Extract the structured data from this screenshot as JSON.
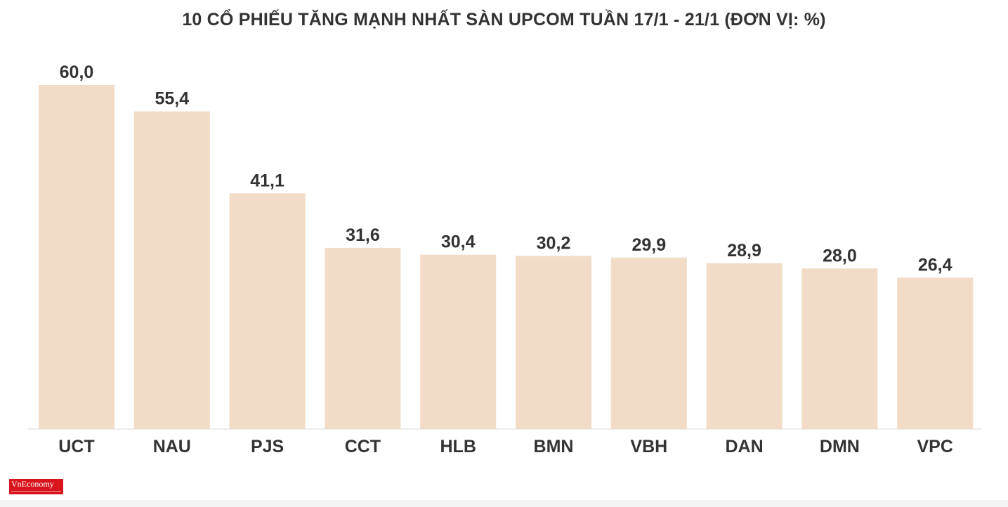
{
  "chart_data": {
    "type": "bar",
    "title": "10 CỔ PHIẾU TĂNG MẠNH NHẤT SÀN UPCOM TUẦN 17/1 - 21/1 (ĐƠN VỊ: %)",
    "categories": [
      "UCT",
      "NAU",
      "PJS",
      "CCT",
      "HLB",
      "BMN",
      "VBH",
      "DAN",
      "DMN",
      "VPC"
    ],
    "values": [
      60.0,
      55.4,
      41.1,
      31.6,
      30.4,
      30.2,
      29.9,
      28.9,
      28.0,
      26.4
    ],
    "value_labels": [
      "60,0",
      "55,4",
      "41,1",
      "31,6",
      "30,4",
      "30,2",
      "29,9",
      "28,9",
      "28,0",
      "26,4"
    ],
    "xlabel": "",
    "ylabel": "",
    "ylim": [
      0,
      60
    ],
    "grid": false,
    "bar_color": "#f2dcc8",
    "text_color": "#333333",
    "axis_color": "#d9d9d9"
  },
  "logo": {
    "text": "VnEconomy",
    "color": "#d8141c"
  }
}
